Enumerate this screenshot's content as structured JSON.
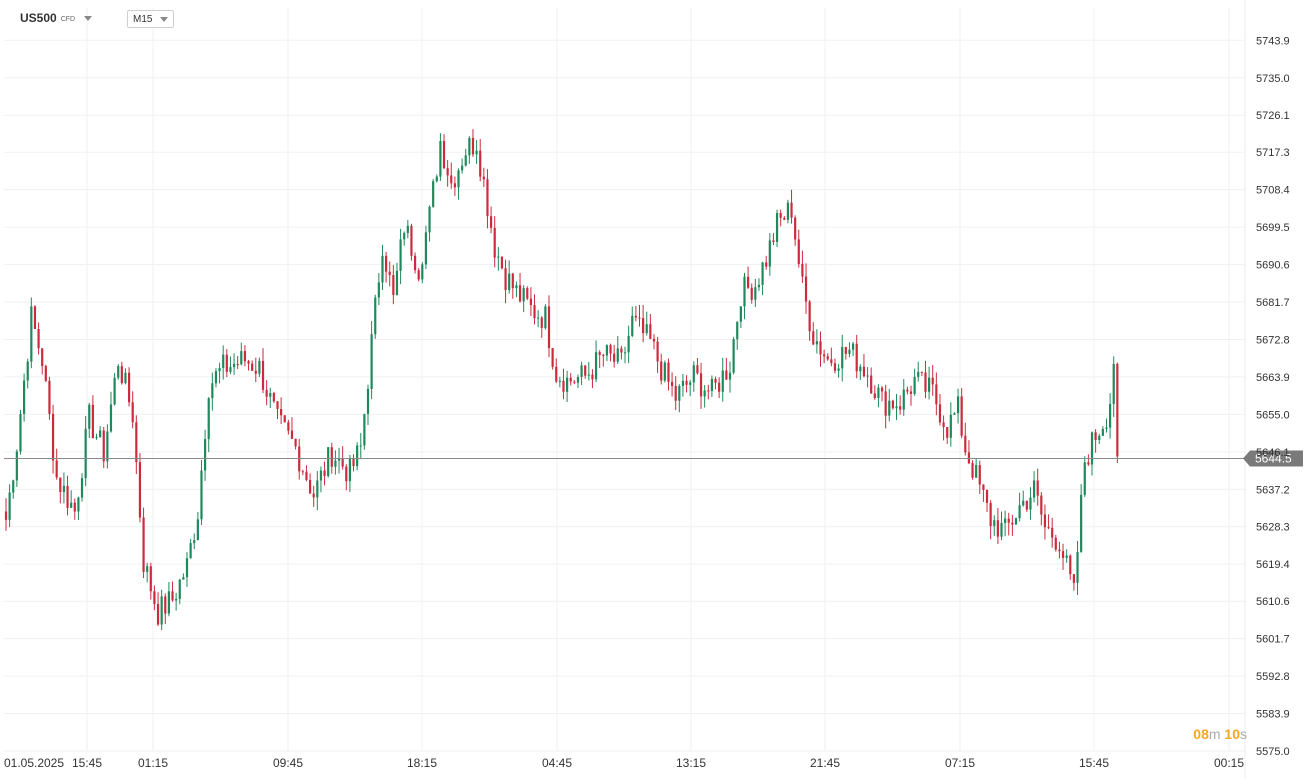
{
  "header": {
    "symbol": "US500",
    "symbol_sub": "CFD",
    "timeframe": "M15"
  },
  "countdown": {
    "min": "08",
    "min_unit": "m",
    "sec": "10",
    "sec_unit": "s"
  },
  "colors": {
    "up": "#1e8a5c",
    "down": "#cc2b3e",
    "grid": "#f1f1f1",
    "price_line": "#8a8a8a",
    "price_tag": "#7a7a7a"
  },
  "chart_data": {
    "type": "candlestick",
    "symbol": "US500",
    "timeframe": "M15",
    "ylim": [
      5575.0,
      5749.2
    ],
    "yticks": [
      5743.9,
      5735.0,
      5726.1,
      5717.3,
      5708.4,
      5699.5,
      5690.6,
      5681.7,
      5672.8,
      5663.9,
      5655.0,
      5646.1,
      5637.2,
      5628.3,
      5619.4,
      5610.6,
      5601.7,
      5592.8,
      5583.9,
      5575.0
    ],
    "xticks": [
      "01.05.2025",
      "15:45",
      "01:15",
      "09:45",
      "18:15",
      "04:45",
      "13:15",
      "21:45",
      "07:15",
      "15:45",
      "00:15"
    ],
    "current_price": 5644.5,
    "current_price_label": "5644.5",
    "grid": true,
    "anchors": [
      [
        0,
        5630
      ],
      [
        3,
        5648
      ],
      [
        5,
        5663
      ],
      [
        7,
        5678
      ],
      [
        10,
        5668
      ],
      [
        14,
        5640
      ],
      [
        19,
        5632
      ],
      [
        23,
        5654
      ],
      [
        27,
        5646
      ],
      [
        31,
        5668
      ],
      [
        35,
        5655
      ],
      [
        38,
        5620
      ],
      [
        42,
        5608
      ],
      [
        46,
        5611
      ],
      [
        50,
        5619
      ],
      [
        53,
        5632
      ],
      [
        56,
        5662
      ],
      [
        60,
        5666
      ],
      [
        66,
        5668
      ],
      [
        70,
        5666
      ],
      [
        75,
        5653
      ],
      [
        80,
        5647
      ],
      [
        85,
        5636
      ],
      [
        90,
        5646
      ],
      [
        95,
        5641
      ],
      [
        98,
        5647
      ],
      [
        101,
        5672
      ],
      [
        104,
        5696
      ],
      [
        107,
        5682
      ],
      [
        110,
        5700
      ],
      [
        114,
        5690
      ],
      [
        117,
        5702
      ],
      [
        120,
        5720
      ],
      [
        123,
        5710
      ],
      [
        127,
        5718
      ],
      [
        130,
        5720
      ],
      [
        133,
        5705
      ],
      [
        135,
        5695
      ],
      [
        138,
        5688
      ],
      [
        141,
        5684
      ],
      [
        145,
        5680
      ],
      [
        149,
        5678
      ],
      [
        152,
        5665
      ],
      [
        155,
        5663
      ],
      [
        160,
        5664
      ],
      [
        165,
        5669
      ],
      [
        170,
        5667
      ],
      [
        173,
        5677
      ],
      [
        178,
        5672
      ],
      [
        182,
        5664
      ],
      [
        185,
        5659
      ],
      [
        190,
        5664
      ],
      [
        195,
        5660
      ],
      [
        200,
        5667
      ],
      [
        203,
        5684
      ],
      [
        207,
        5686
      ],
      [
        210,
        5692
      ],
      [
        213,
        5700
      ],
      [
        217,
        5704
      ],
      [
        220,
        5685
      ],
      [
        223,
        5674
      ],
      [
        227,
        5668
      ],
      [
        233,
        5670
      ],
      [
        238,
        5665
      ],
      [
        242,
        5658
      ],
      [
        247,
        5658
      ],
      [
        251,
        5663
      ],
      [
        256,
        5660
      ],
      [
        260,
        5652
      ],
      [
        263,
        5656
      ],
      [
        265,
        5647
      ],
      [
        268,
        5640
      ],
      [
        272,
        5630
      ],
      [
        276,
        5627
      ],
      [
        280,
        5633
      ],
      [
        284,
        5637
      ],
      [
        287,
        5628
      ],
      [
        291,
        5625
      ],
      [
        295,
        5612
      ],
      [
        298,
        5644
      ],
      [
        301,
        5650
      ],
      [
        304,
        5655
      ],
      [
        306,
        5662
      ],
      [
        307,
        5645
      ]
    ]
  }
}
